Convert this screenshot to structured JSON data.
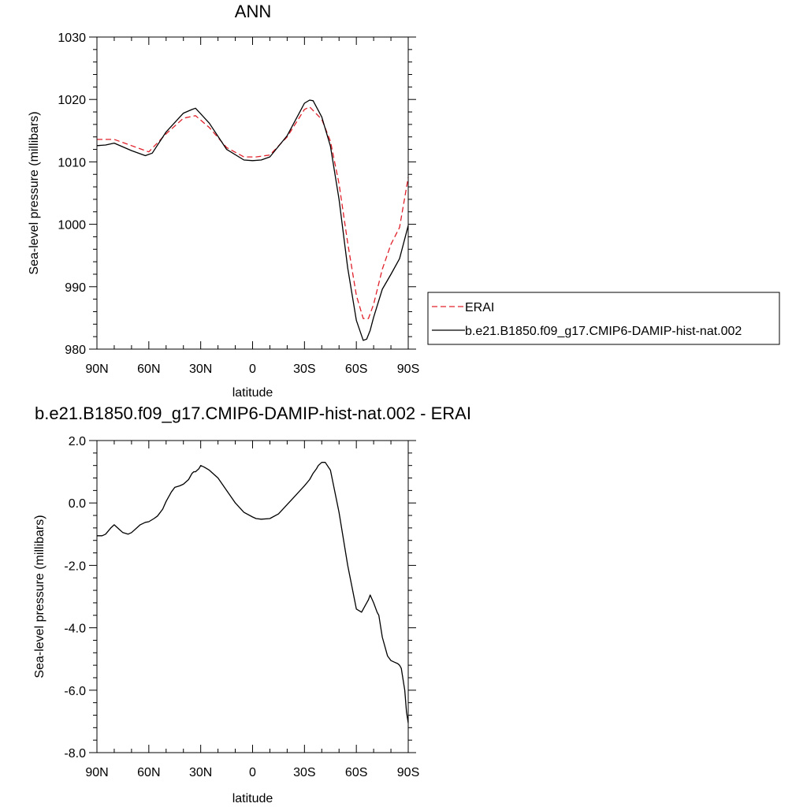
{
  "chart_data": [
    {
      "type": "line",
      "title": "ANN",
      "xlabel": "latitude",
      "ylabel": "Sea-level pressure (millibars)",
      "xlim": [
        90,
        -90
      ],
      "ylim": [
        980,
        1030
      ],
      "x_ticks": [
        90,
        60,
        30,
        0,
        -30,
        -60,
        -90
      ],
      "x_tick_labels": [
        "90N",
        "60N",
        "30N",
        "0",
        "30S",
        "60S",
        "90S"
      ],
      "y_ticks": [
        980,
        990,
        1000,
        1010,
        1020,
        1030
      ],
      "y_tick_labels": [
        "980",
        "990",
        "1000",
        "1010",
        "1020",
        "1030"
      ],
      "legend_position": "right",
      "series": [
        {
          "name": "ERAI",
          "color": "#e0202a",
          "dash": "dashed",
          "x": [
            90,
            80,
            70,
            60,
            50,
            40,
            33,
            25,
            15,
            5,
            -2,
            -10,
            -20,
            -30,
            -33,
            -40,
            -45,
            -50,
            -55,
            -60,
            -64,
            -67,
            -70,
            -75,
            -80,
            -85,
            -90
          ],
          "y": [
            1013.6,
            1013.6,
            1012.6,
            1011.6,
            1014.5,
            1017.0,
            1017.4,
            1015.5,
            1012.3,
            1010.8,
            1010.8,
            1011.1,
            1014.0,
            1018.4,
            1018.8,
            1016.8,
            1013.3,
            1006.5,
            997.0,
            988.6,
            984.9,
            984.9,
            987.2,
            992.8,
            996.8,
            999.5,
            1007.5
          ]
        },
        {
          "name": "b.e21.B1850.f09_g17.CMIP6-DAMIP-hist-nat.002",
          "color": "#000000",
          "dash": "solid",
          "x": [
            90,
            85,
            80,
            70,
            62,
            58,
            50,
            40,
            35,
            33,
            25,
            15,
            5,
            0,
            -5,
            -10,
            -20,
            -30,
            -33,
            -35,
            -40,
            -45,
            -50,
            -55,
            -60,
            -64,
            -66,
            -68,
            -70,
            -75,
            -80,
            -85,
            -90
          ],
          "y": [
            1012.6,
            1012.7,
            1013.0,
            1011.8,
            1011.0,
            1011.4,
            1014.8,
            1017.8,
            1018.4,
            1018.6,
            1016.2,
            1012.0,
            1010.3,
            1010.2,
            1010.3,
            1010.8,
            1014.2,
            1019.4,
            1019.9,
            1019.8,
            1017.2,
            1012.5,
            1004.0,
            993.0,
            984.6,
            981.4,
            981.6,
            983.0,
            985.1,
            989.6,
            992.0,
            994.5,
            999.8
          ]
        }
      ]
    },
    {
      "type": "line",
      "title": "b.e21.B1850.f09_g17.CMIP6-DAMIP-hist-nat.002 - ERAI",
      "xlabel": "latitude",
      "ylabel": "Sea-level pressure (millibars)",
      "xlim": [
        90,
        -90
      ],
      "ylim": [
        -8.0,
        2.0
      ],
      "x_ticks": [
        90,
        60,
        30,
        0,
        -30,
        -60,
        -90
      ],
      "x_tick_labels": [
        "90N",
        "60N",
        "30N",
        "0",
        "30S",
        "60S",
        "90S"
      ],
      "y_ticks": [
        -8.0,
        -6.0,
        -4.0,
        -2.0,
        0.0,
        2.0
      ],
      "y_tick_labels": [
        "-8.0",
        "-6.0",
        "-4.0",
        "-2.0",
        "0.0",
        "2.0"
      ],
      "series": [
        {
          "color": "#000000",
          "dash": "solid",
          "x": [
            90,
            87,
            85,
            82,
            80,
            77,
            75,
            72,
            70,
            67,
            65,
            62,
            60,
            57,
            55,
            52,
            50,
            47,
            45,
            42,
            40,
            37,
            35,
            34,
            33,
            31,
            30,
            28,
            25,
            20,
            15,
            10,
            5,
            0,
            -2,
            -5,
            -10,
            -15,
            -20,
            -25,
            -30,
            -33,
            -35,
            -37,
            -38,
            -40,
            -42,
            -45,
            -50,
            -55,
            -60,
            -63,
            -65,
            -67,
            -68,
            -70,
            -72,
            -73,
            -75,
            -78,
            -80,
            -82,
            -84,
            -85,
            -86,
            -88,
            -89,
            -90
          ],
          "y": [
            -1.05,
            -1.05,
            -1.0,
            -0.8,
            -0.7,
            -0.85,
            -0.95,
            -1.0,
            -0.95,
            -0.8,
            -0.7,
            -0.62,
            -0.6,
            -0.5,
            -0.42,
            -0.2,
            0.05,
            0.35,
            0.5,
            0.55,
            0.6,
            0.75,
            0.95,
            1.0,
            1.0,
            1.1,
            1.2,
            1.15,
            1.05,
            0.8,
            0.4,
            0.0,
            -0.3,
            -0.45,
            -0.5,
            -0.52,
            -0.5,
            -0.35,
            -0.05,
            0.25,
            0.55,
            0.75,
            0.95,
            1.1,
            1.2,
            1.3,
            1.3,
            1.05,
            -0.3,
            -2.0,
            -3.4,
            -3.5,
            -3.3,
            -3.1,
            -2.95,
            -3.2,
            -3.5,
            -3.6,
            -4.3,
            -4.9,
            -5.05,
            -5.1,
            -5.15,
            -5.2,
            -5.3,
            -6.0,
            -6.7,
            -7.05
          ]
        }
      ]
    }
  ]
}
